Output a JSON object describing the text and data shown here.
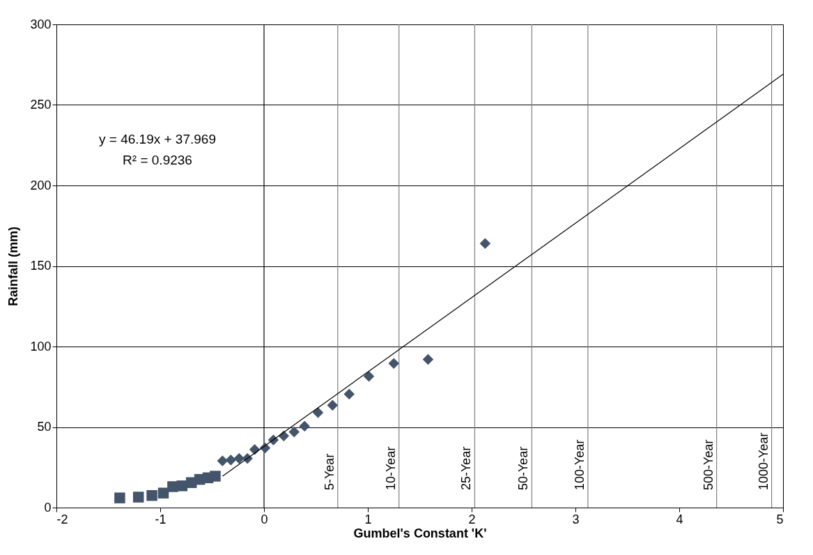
{
  "chart_data": {
    "type": "scatter",
    "xlabel": "Gumbel's Constant 'K'",
    "ylabel": "Rainfall (mm)",
    "xlim": [
      -2,
      5
    ],
    "xticks": [
      -2,
      -1,
      0,
      1,
      2,
      3,
      4,
      5
    ],
    "ylim": [
      0,
      300
    ],
    "yticks": [
      0,
      50,
      100,
      150,
      200,
      250,
      300
    ],
    "grid": "y",
    "series": [
      {
        "marker": "square",
        "color": "#44546a",
        "x": [
          -1.39,
          -1.21,
          -1.08,
          -0.97,
          -0.88,
          -0.79,
          -0.7,
          -0.62,
          -0.54,
          -0.47
        ],
        "values": [
          6,
          6.5,
          7.5,
          9,
          13,
          13.5,
          15.5,
          17.5,
          18.5,
          19.5
        ]
      },
      {
        "marker": "diamond",
        "color": "#44546a",
        "x": [
          -0.4,
          -0.32,
          -0.24,
          -0.16,
          -0.09,
          0.01,
          0.09,
          0.19,
          0.29,
          0.39,
          0.52,
          0.66,
          0.82,
          1.01,
          1.25,
          1.58,
          2.13
        ],
        "values": [
          29,
          29.5,
          30.5,
          30.5,
          36,
          37,
          42,
          44.5,
          47,
          50.5,
          59,
          63.5,
          70.5,
          81.5,
          89.5,
          92,
          164
        ]
      },
      {
        "type": "line",
        "color": "#000000",
        "x": [
          -0.4,
          5
        ],
        "values": [
          19.5,
          269
        ]
      }
    ],
    "ref_lines": [
      {
        "axis": "x",
        "value": 0,
        "color": "#000000"
      },
      {
        "axis": "x",
        "value": 0.71,
        "label": "5-Year",
        "color": "#808080"
      },
      {
        "axis": "x",
        "value": 1.3,
        "label": "10-Year",
        "color": "#808080"
      },
      {
        "axis": "x",
        "value": 2.03,
        "label": "25-Year",
        "color": "#808080"
      },
      {
        "axis": "x",
        "value": 2.58,
        "label": "50-Year",
        "color": "#808080"
      },
      {
        "axis": "x",
        "value": 3.12,
        "label": "100-Year",
        "color": "#808080"
      },
      {
        "axis": "x",
        "value": 4.36,
        "label": "500-Year",
        "color": "#808080"
      },
      {
        "axis": "x",
        "value": 4.89,
        "label": "1000-Year",
        "color": "#808080"
      }
    ],
    "annotations": [
      "y = 46.19x + 37.969",
      "R² = 0.9236"
    ]
  }
}
